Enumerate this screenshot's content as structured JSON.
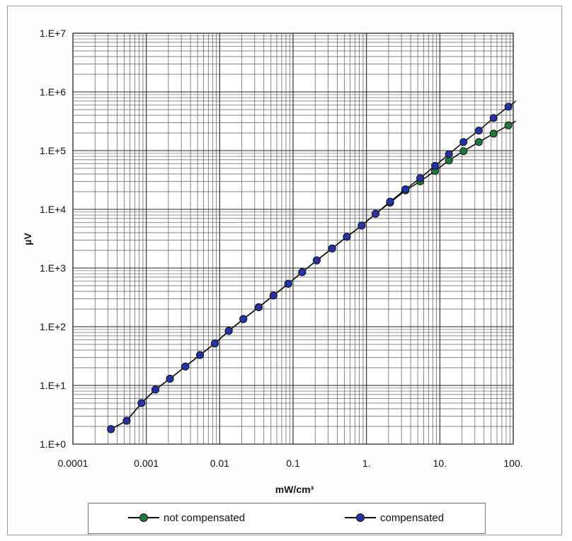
{
  "chart_data": {
    "type": "line",
    "xscale": "log",
    "yscale": "log",
    "xlim": [
      0.0001,
      100
    ],
    "ylim": [
      1,
      10000000
    ],
    "grid": true,
    "xlabel": "mW/cm³",
    "ylabel": "µV",
    "x_tick_labels": [
      "0.0001",
      "0.001",
      "0.01",
      "0.1",
      "1.",
      "10.",
      "100."
    ],
    "y_tick_labels": [
      "1.E+0",
      "1.E+1",
      "1.E+2",
      "1.E+3",
      "1.E+4",
      "1.E+5",
      "1.E+6",
      "1.E+7"
    ],
    "legend_position": "bottom",
    "series": [
      {
        "name": "not compensated",
        "color": "#1e7a3c",
        "x": [
          0.00033,
          0.00054,
          0.00086,
          0.00133,
          0.0021,
          0.0034,
          0.0054,
          0.0086,
          0.0133,
          0.021,
          0.034,
          0.054,
          0.086,
          0.133,
          0.21,
          0.34,
          0.54,
          0.86,
          1.33,
          2.1,
          3.4,
          5.4,
          8.6,
          13.3,
          21.0,
          34.0,
          54.0,
          86.0
        ],
        "y": [
          1.8,
          2.5,
          5.0,
          8.5,
          13,
          21,
          33,
          52,
          85,
          135,
          215,
          340,
          540,
          850,
          1350,
          2150,
          3400,
          5300,
          8400,
          13000,
          21000,
          30000,
          45000,
          68000,
          98000,
          140000,
          195000,
          270000
        ]
      },
      {
        "name": "compensated",
        "color": "#2433a8",
        "x": [
          0.00033,
          0.00054,
          0.00086,
          0.00133,
          0.0021,
          0.0034,
          0.0054,
          0.0086,
          0.0133,
          0.021,
          0.034,
          0.054,
          0.086,
          0.133,
          0.21,
          0.34,
          0.54,
          0.86,
          1.33,
          2.1,
          3.4,
          5.4,
          8.6,
          13.3,
          21.0,
          34.0,
          54.0,
          86.0
        ],
        "y": [
          1.8,
          2.5,
          5.0,
          8.5,
          13,
          21,
          33,
          52,
          85,
          135,
          215,
          340,
          540,
          850,
          1350,
          2150,
          3400,
          5300,
          8400,
          13500,
          22000,
          34000,
          55000,
          87000,
          140000,
          220000,
          360000,
          560000
        ]
      }
    ]
  },
  "legend": {
    "items": [
      "not compensated",
      "compensated"
    ]
  }
}
